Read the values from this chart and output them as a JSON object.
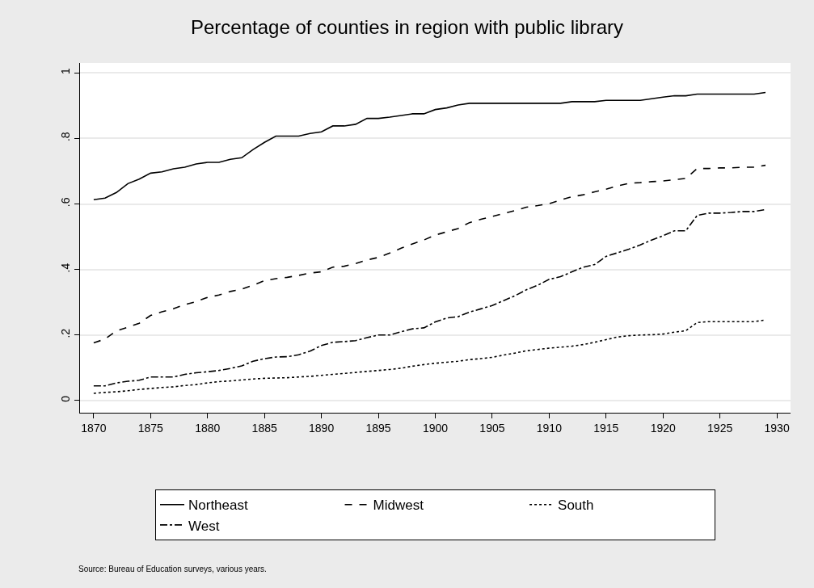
{
  "chart_data": {
    "type": "line",
    "title": "Percentage of counties in region with public library",
    "x": [
      1870,
      1871,
      1872,
      1873,
      1874,
      1875,
      1876,
      1877,
      1878,
      1879,
      1880,
      1881,
      1882,
      1883,
      1884,
      1885,
      1886,
      1887,
      1888,
      1889,
      1890,
      1891,
      1892,
      1893,
      1894,
      1895,
      1896,
      1897,
      1898,
      1899,
      1900,
      1901,
      1902,
      1903,
      1904,
      1905,
      1906,
      1907,
      1908,
      1909,
      1910,
      1911,
      1912,
      1913,
      1914,
      1915,
      1916,
      1917,
      1918,
      1919,
      1920,
      1921,
      1922,
      1923,
      1924,
      1925,
      1926,
      1927,
      1928,
      1929
    ],
    "series": [
      {
        "name": "Northeast",
        "color": "#000000",
        "line_style": "solid",
        "values": [
          0.613,
          0.618,
          0.635,
          0.662,
          0.676,
          0.694,
          0.698,
          0.707,
          0.712,
          0.722,
          0.727,
          0.727,
          0.736,
          0.741,
          0.766,
          0.788,
          0.807,
          0.807,
          0.807,
          0.815,
          0.82,
          0.838,
          0.838,
          0.843,
          0.861,
          0.861,
          0.865,
          0.87,
          0.875,
          0.875,
          0.888,
          0.893,
          0.902,
          0.907,
          0.907,
          0.907,
          0.907,
          0.907,
          0.907,
          0.907,
          0.907,
          0.907,
          0.912,
          0.912,
          0.912,
          0.916,
          0.916,
          0.916,
          0.916,
          0.921,
          0.926,
          0.93,
          0.93,
          0.935,
          0.935,
          0.935,
          0.935,
          0.935,
          0.935,
          0.94
        ]
      },
      {
        "name": "Midwest",
        "color": "#000000",
        "line_style": "dashed",
        "values": [
          0.176,
          0.188,
          0.213,
          0.224,
          0.236,
          0.26,
          0.271,
          0.28,
          0.293,
          0.302,
          0.315,
          0.322,
          0.333,
          0.34,
          0.352,
          0.366,
          0.372,
          0.376,
          0.382,
          0.389,
          0.393,
          0.407,
          0.41,
          0.418,
          0.429,
          0.437,
          0.45,
          0.465,
          0.478,
          0.49,
          0.505,
          0.515,
          0.525,
          0.543,
          0.553,
          0.562,
          0.571,
          0.58,
          0.59,
          0.595,
          0.601,
          0.612,
          0.622,
          0.628,
          0.637,
          0.645,
          0.655,
          0.663,
          0.665,
          0.668,
          0.67,
          0.674,
          0.678,
          0.708,
          0.708,
          0.71,
          0.71,
          0.712,
          0.712,
          0.718
        ]
      },
      {
        "name": "South",
        "color": "#000000",
        "line_style": "dotted",
        "values": [
          0.022,
          0.025,
          0.027,
          0.03,
          0.034,
          0.037,
          0.04,
          0.042,
          0.046,
          0.049,
          0.054,
          0.058,
          0.06,
          0.063,
          0.066,
          0.068,
          0.069,
          0.07,
          0.072,
          0.074,
          0.077,
          0.08,
          0.083,
          0.086,
          0.089,
          0.092,
          0.095,
          0.099,
          0.105,
          0.11,
          0.114,
          0.117,
          0.12,
          0.125,
          0.128,
          0.132,
          0.139,
          0.145,
          0.152,
          0.156,
          0.16,
          0.163,
          0.166,
          0.171,
          0.178,
          0.186,
          0.194,
          0.198,
          0.2,
          0.201,
          0.203,
          0.209,
          0.213,
          0.238,
          0.241,
          0.241,
          0.241,
          0.241,
          0.241,
          0.246
        ]
      },
      {
        "name": "West",
        "color": "#000000",
        "line_style": "dashdot",
        "values": [
          0.045,
          0.045,
          0.054,
          0.059,
          0.062,
          0.072,
          0.072,
          0.072,
          0.08,
          0.085,
          0.088,
          0.092,
          0.098,
          0.106,
          0.12,
          0.128,
          0.133,
          0.134,
          0.14,
          0.151,
          0.168,
          0.178,
          0.18,
          0.183,
          0.192,
          0.2,
          0.2,
          0.21,
          0.219,
          0.222,
          0.24,
          0.252,
          0.256,
          0.27,
          0.28,
          0.29,
          0.305,
          0.32,
          0.338,
          0.352,
          0.37,
          0.378,
          0.393,
          0.407,
          0.415,
          0.44,
          0.451,
          0.462,
          0.475,
          0.49,
          0.503,
          0.518,
          0.518,
          0.565,
          0.572,
          0.572,
          0.574,
          0.577,
          0.577,
          0.583
        ]
      }
    ],
    "xlim": [
      1868.8,
      1931.2
    ],
    "xticks": [
      1870,
      1875,
      1880,
      1885,
      1890,
      1895,
      1900,
      1905,
      1910,
      1915,
      1920,
      1925,
      1930
    ],
    "ylim": [
      -0.037,
      1.03
    ],
    "yticks": [
      {
        "value": 0,
        "label": "0"
      },
      {
        "value": 0.2,
        "label": ".2"
      },
      {
        "value": 0.4,
        "label": ".4"
      },
      {
        "value": 0.6,
        "label": ".6"
      },
      {
        "value": 0.8,
        "label": ".8"
      },
      {
        "value": 1,
        "label": "1"
      }
    ],
    "grid": "y",
    "legend": "bottom",
    "annotations": [
      "Source: Bureau of Education surveys, various years."
    ]
  }
}
